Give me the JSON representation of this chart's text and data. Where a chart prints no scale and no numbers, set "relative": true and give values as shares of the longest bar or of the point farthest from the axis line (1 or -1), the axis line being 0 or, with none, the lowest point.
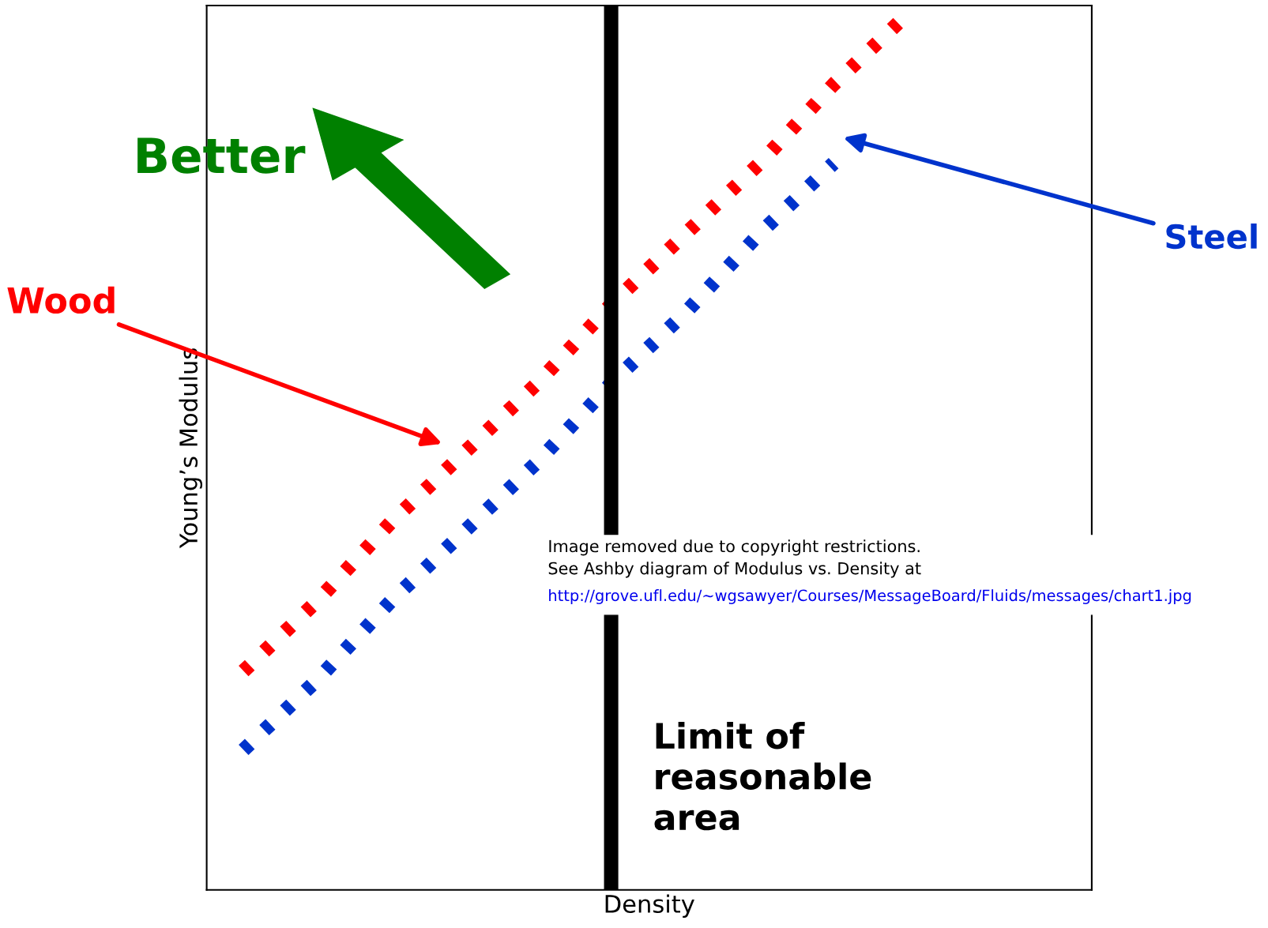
{
  "chart_data": {
    "type": "line",
    "relative": true,
    "xlabel": "Density",
    "ylabel": "Young’s Modulus",
    "categories": [
      null,
      null,
      null,
      null,
      null,
      null,
      null,
      null,
      null,
      null,
      null,
      null
    ],
    "series": [
      {
        "name": "Wood",
        "color": "#ff0000",
        "values": [
          0.25,
          0.33,
          0.42,
          0.5,
          0.58,
          0.67,
          0.75,
          0.83,
          0.92,
          1.0,
          null,
          null
        ]
      },
      {
        "name": "Steel",
        "color": "#0033cc",
        "values": [
          0.16,
          0.24,
          0.33,
          0.41,
          0.49,
          0.58,
          0.66,
          0.75,
          0.83,
          null,
          null,
          null
        ]
      }
    ],
    "line_style": "dotted",
    "marker": "none",
    "tick_labels": false,
    "annotations": [
      "Better",
      "Limit of\nreasonable\narea",
      "Image removed due to copyright restrictions.\nSee Ashby diagram of Modulus vs. Density at",
      "http://grove.ufl.edu/~wgsawyer/Courses/MessageBoard/Fluids/messages/chart1.jpg"
    ]
  }
}
